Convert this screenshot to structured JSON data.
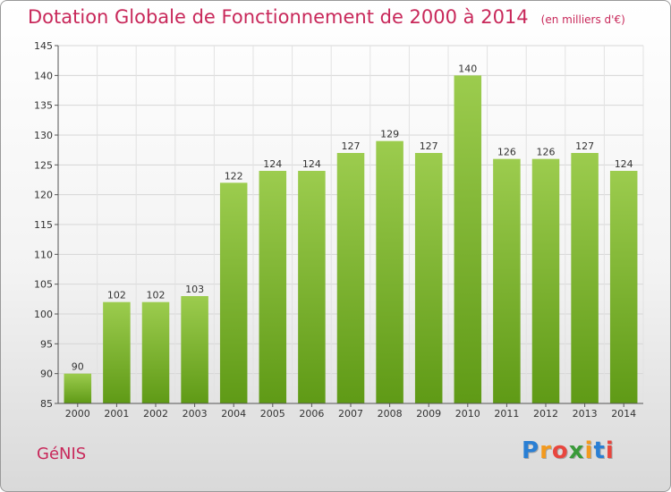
{
  "header": {
    "title": "Dotation Globale de Fonctionnement de 2000 à 2014",
    "unit": "(en milliers d'€)"
  },
  "footer": {
    "town": "GéNIS",
    "logo_letters": [
      "P",
      "r",
      "o",
      "x",
      "i",
      "t",
      "i"
    ],
    "logo_colors": [
      "#2a7fd4",
      "#f39a1e",
      "#e8463e",
      "#3a9a3a",
      "#f39a1e",
      "#2a7fd4",
      "#e8463e"
    ]
  },
  "chart_data": {
    "type": "bar",
    "title": "Dotation Globale de Fonctionnement de 2000 à 2014",
    "subtitle": "(en milliers d'€)",
    "xlabel": "",
    "ylabel": "",
    "categories": [
      "2000",
      "2001",
      "2002",
      "2003",
      "2004",
      "2005",
      "2006",
      "2007",
      "2008",
      "2009",
      "2010",
      "2011",
      "2012",
      "2013",
      "2014"
    ],
    "values": [
      90,
      102,
      102,
      103,
      122,
      124,
      124,
      127,
      129,
      127,
      140,
      126,
      126,
      127,
      124
    ],
    "ylim": [
      85,
      145
    ],
    "yticks": [
      85,
      90,
      95,
      100,
      105,
      110,
      115,
      120,
      125,
      130,
      135,
      140,
      145
    ],
    "grid": true,
    "bar_color_top": "#9ccc4e",
    "bar_color_bottom": "#5f9a16"
  }
}
